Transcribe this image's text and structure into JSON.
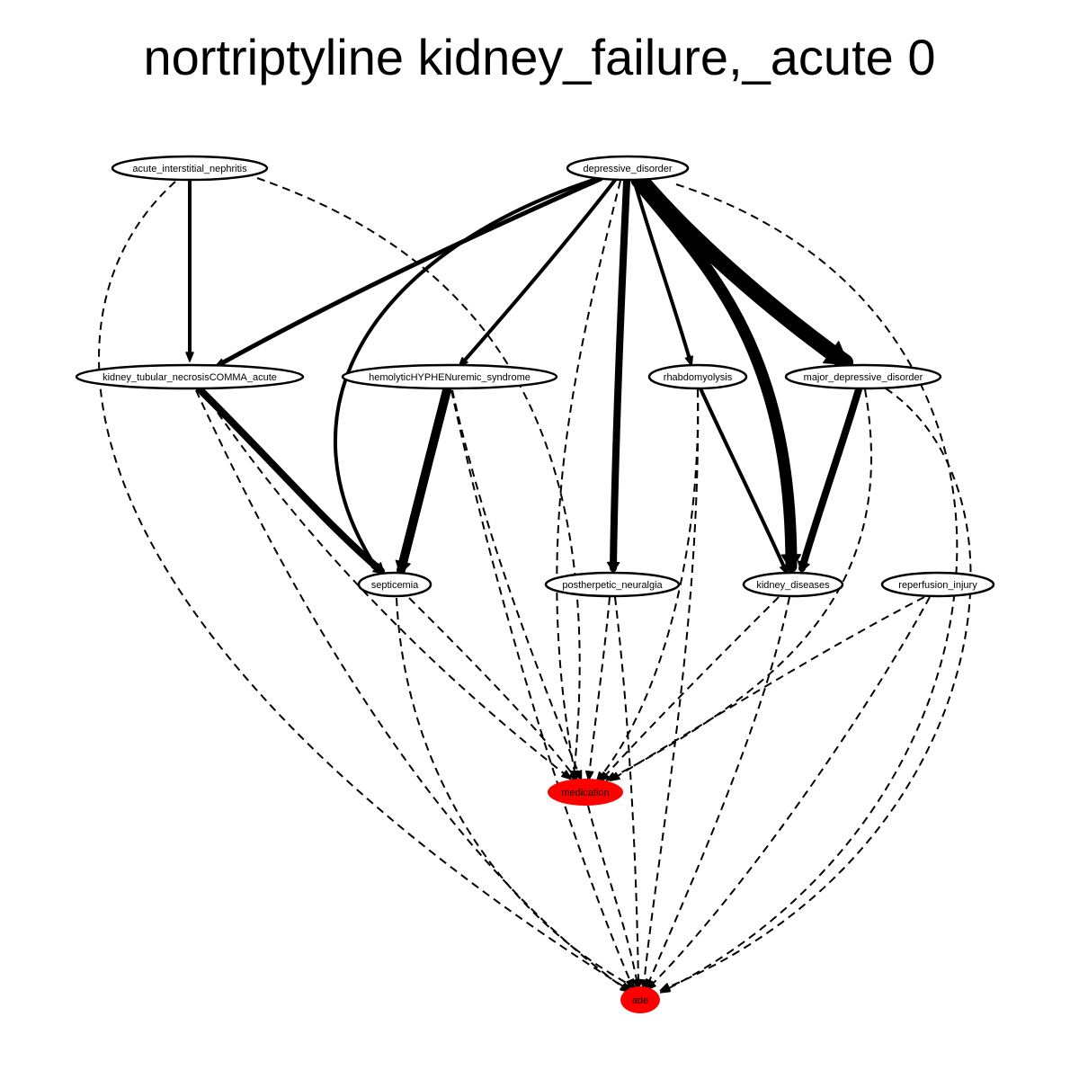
{
  "title": "nortriptyline kidney_failure,_acute 0",
  "colors": {
    "default_node_fill": "#ffffff",
    "highlight_node_fill": "#ff0000",
    "stroke": "#000000"
  },
  "nodes": [
    {
      "id": "acute_interstitial_nephritis",
      "label": "acute_interstitial_nephritis",
      "highlighted": false
    },
    {
      "id": "depressive_disorder",
      "label": "depressive_disorder",
      "highlighted": false
    },
    {
      "id": "kidney_tubular_necrosisCOMMA_acute",
      "label": "kidney_tubular_necrosisCOMMA_acute",
      "highlighted": false
    },
    {
      "id": "hemolyticHYPHENuremic_syndrome",
      "label": "hemolyticHYPHENuremic_syndrome",
      "highlighted": false
    },
    {
      "id": "rhabdomyolysis",
      "label": "rhabdomyolysis",
      "highlighted": false
    },
    {
      "id": "major_depressive_disorder",
      "label": "major_depressive_disorder",
      "highlighted": false
    },
    {
      "id": "septicemia",
      "label": "septicemia",
      "highlighted": false
    },
    {
      "id": "postherpetic_neuralgia",
      "label": "postherpetic_neuralgia",
      "highlighted": false
    },
    {
      "id": "kidney_diseases",
      "label": "kidney_diseases",
      "highlighted": false
    },
    {
      "id": "reperfusion_injury",
      "label": "reperfusion_injury",
      "highlighted": false
    },
    {
      "id": "medication",
      "label": "medication",
      "highlighted": true
    },
    {
      "id": "ade",
      "label": "ade",
      "highlighted": true
    }
  ],
  "edges": [
    {
      "from": "acute_interstitial_nephritis",
      "to": "kidney_tubular_necrosisCOMMA_acute",
      "style": "solid",
      "weight": 4
    },
    {
      "from": "acute_interstitial_nephritis",
      "to": "medication",
      "style": "dashed",
      "weight": 2
    },
    {
      "from": "acute_interstitial_nephritis",
      "to": "ade",
      "style": "dashed",
      "weight": 2
    },
    {
      "from": "depressive_disorder",
      "to": "kidney_tubular_necrosisCOMMA_acute",
      "style": "solid",
      "weight": 5
    },
    {
      "from": "depressive_disorder",
      "to": "septicemia",
      "style": "solid",
      "weight": 4
    },
    {
      "from": "depressive_disorder",
      "to": "hemolyticHYPHENuremic_syndrome",
      "style": "solid",
      "weight": 4
    },
    {
      "from": "depressive_disorder",
      "to": "postherpetic_neuralgia",
      "style": "solid",
      "weight": 8
    },
    {
      "from": "depressive_disorder",
      "to": "rhabdomyolysis",
      "style": "solid",
      "weight": 4
    },
    {
      "from": "depressive_disorder",
      "to": "kidney_diseases",
      "style": "solid",
      "weight": 13
    },
    {
      "from": "depressive_disorder",
      "to": "major_depressive_disorder",
      "style": "solid",
      "weight": 18
    },
    {
      "from": "depressive_disorder",
      "to": "medication",
      "style": "dashed",
      "weight": 2
    },
    {
      "from": "depressive_disorder",
      "to": "ade",
      "style": "dashed",
      "weight": 2
    },
    {
      "from": "kidney_tubular_necrosisCOMMA_acute",
      "to": "septicemia",
      "style": "solid",
      "weight": 8
    },
    {
      "from": "kidney_tubular_necrosisCOMMA_acute",
      "to": "medication",
      "style": "dashed",
      "weight": 2
    },
    {
      "from": "kidney_tubular_necrosisCOMMA_acute",
      "to": "ade",
      "style": "dashed",
      "weight": 2
    },
    {
      "from": "hemolyticHYPHENuremic_syndrome",
      "to": "septicemia",
      "style": "solid",
      "weight": 10
    },
    {
      "from": "hemolyticHYPHENuremic_syndrome",
      "to": "medication",
      "style": "dashed",
      "weight": 2
    },
    {
      "from": "hemolyticHYPHENuremic_syndrome",
      "to": "ade",
      "style": "dashed",
      "weight": 2
    },
    {
      "from": "rhabdomyolysis",
      "to": "kidney_diseases",
      "style": "solid",
      "weight": 4
    },
    {
      "from": "rhabdomyolysis",
      "to": "medication",
      "style": "dashed",
      "weight": 2
    },
    {
      "from": "rhabdomyolysis",
      "to": "ade",
      "style": "dashed",
      "weight": 2
    },
    {
      "from": "major_depressive_disorder",
      "to": "kidney_diseases",
      "style": "solid",
      "weight": 8
    },
    {
      "from": "major_depressive_disorder",
      "to": "medication",
      "style": "dashed",
      "weight": 2
    },
    {
      "from": "major_depressive_disorder",
      "to": "ade",
      "style": "dashed",
      "weight": 2
    },
    {
      "from": "septicemia",
      "to": "medication",
      "style": "dashed",
      "weight": 2
    },
    {
      "from": "septicemia",
      "to": "ade",
      "style": "dashed",
      "weight": 2
    },
    {
      "from": "postherpetic_neuralgia",
      "to": "medication",
      "style": "dashed",
      "weight": 2
    },
    {
      "from": "postherpetic_neuralgia",
      "to": "ade",
      "style": "dashed",
      "weight": 2
    },
    {
      "from": "kidney_diseases",
      "to": "medication",
      "style": "dashed",
      "weight": 2
    },
    {
      "from": "kidney_diseases",
      "to": "ade",
      "style": "dashed",
      "weight": 2
    },
    {
      "from": "reperfusion_injury",
      "to": "medication",
      "style": "dashed",
      "weight": 2
    },
    {
      "from": "reperfusion_injury",
      "to": "ade",
      "style": "dashed",
      "weight": 2
    },
    {
      "from": "medication",
      "to": "ade",
      "style": "dashed",
      "weight": 2
    }
  ]
}
